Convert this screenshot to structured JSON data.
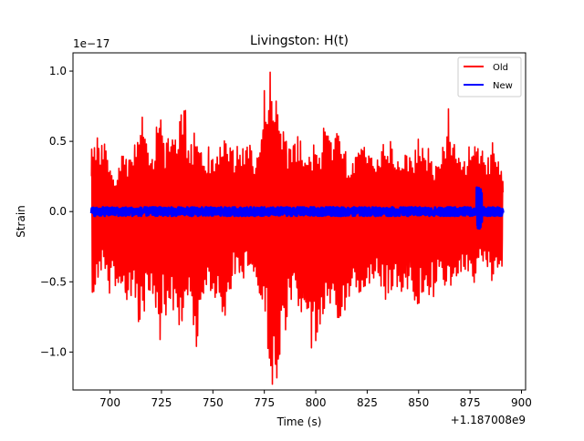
{
  "chart_data": {
    "type": "line",
    "title": "Livingston: H(t)",
    "xlabel": "Time (s)",
    "ylabel": "Strain",
    "x_offset_label": "+1.187008e9",
    "y_scale_label": "1e−17",
    "xlim": [
      682,
      902
    ],
    "ylim": [
      -1.27,
      1.13
    ],
    "xticks": [
      700,
      725,
      750,
      775,
      800,
      825,
      850,
      875,
      900
    ],
    "xtick_labels": [
      "700",
      "725",
      "750",
      "775",
      "800",
      "825",
      "850",
      "875",
      "900"
    ],
    "yticks": [
      -1.0,
      -0.5,
      0.0,
      0.5,
      1.0
    ],
    "ytick_labels": [
      "−1.0",
      "−0.5",
      "0.0",
      "0.5",
      "1.0"
    ],
    "grid": false,
    "legend_position": "top-right",
    "series": [
      {
        "name": "Old",
        "color": "#ff0000",
        "x_range": [
          691,
          891
        ],
        "envelope": {
          "x": [
            691,
            694,
            697,
            700,
            703,
            706,
            709,
            712,
            715,
            718,
            721,
            724,
            727,
            730,
            733,
            736,
            739,
            742,
            745,
            748,
            751,
            754,
            757,
            760,
            763,
            766,
            769,
            772,
            775,
            778,
            781,
            784,
            787,
            790,
            793,
            796,
            799,
            802,
            805,
            808,
            811,
            814,
            817,
            820,
            823,
            826,
            829,
            832,
            835,
            838,
            841,
            844,
            847,
            850,
            853,
            856,
            859,
            862,
            865,
            868,
            871,
            874,
            877,
            880,
            883,
            886,
            889,
            891
          ],
          "upper": [
            0.52,
            0.55,
            0.53,
            0.32,
            0.25,
            0.45,
            0.42,
            0.58,
            0.8,
            0.55,
            0.38,
            0.86,
            0.5,
            0.55,
            0.62,
            0.82,
            0.5,
            0.6,
            0.38,
            0.5,
            0.38,
            0.55,
            0.5,
            0.45,
            0.48,
            0.45,
            0.55,
            0.42,
            0.95,
            1.02,
            0.88,
            0.62,
            0.55,
            0.5,
            0.6,
            0.38,
            0.52,
            0.38,
            0.82,
            0.5,
            0.65,
            0.45,
            0.35,
            0.48,
            0.52,
            0.45,
            0.38,
            0.5,
            0.55,
            0.48,
            0.38,
            0.45,
            0.38,
            0.55,
            0.5,
            0.42,
            0.38,
            0.5,
            0.8,
            0.45,
            0.38,
            0.5,
            0.5,
            0.52,
            0.38,
            0.52,
            0.35,
            0.3
          ],
          "lower": [
            -0.65,
            -0.55,
            -0.42,
            -0.6,
            -0.55,
            -0.6,
            -0.65,
            -0.7,
            -0.86,
            -0.62,
            -0.6,
            -0.98,
            -0.75,
            -0.7,
            -0.95,
            -0.87,
            -0.65,
            -1.12,
            -0.6,
            -0.55,
            -0.65,
            -0.85,
            -0.72,
            -0.5,
            -0.6,
            -0.5,
            -0.45,
            -0.62,
            -0.75,
            -1.26,
            -1.26,
            -0.95,
            -0.78,
            -0.7,
            -0.82,
            -0.93,
            -1.06,
            -0.86,
            -0.7,
            -0.72,
            -0.98,
            -0.75,
            -0.62,
            -0.55,
            -0.72,
            -0.6,
            -0.52,
            -0.55,
            -0.7,
            -0.55,
            -0.6,
            -0.55,
            -0.65,
            -0.7,
            -0.6,
            -0.65,
            -0.6,
            -0.56,
            -0.65,
            -0.56,
            -0.5,
            -0.48,
            -0.55,
            -0.4,
            -0.45,
            -0.5,
            -0.5,
            -0.52
          ]
        }
      },
      {
        "name": "New",
        "color": "#0000ff",
        "x_range": [
          691,
          891
        ],
        "amplitude": 0.03,
        "burst": {
          "x": 879.5,
          "min": -0.12,
          "max": 0.18
        }
      }
    ]
  }
}
